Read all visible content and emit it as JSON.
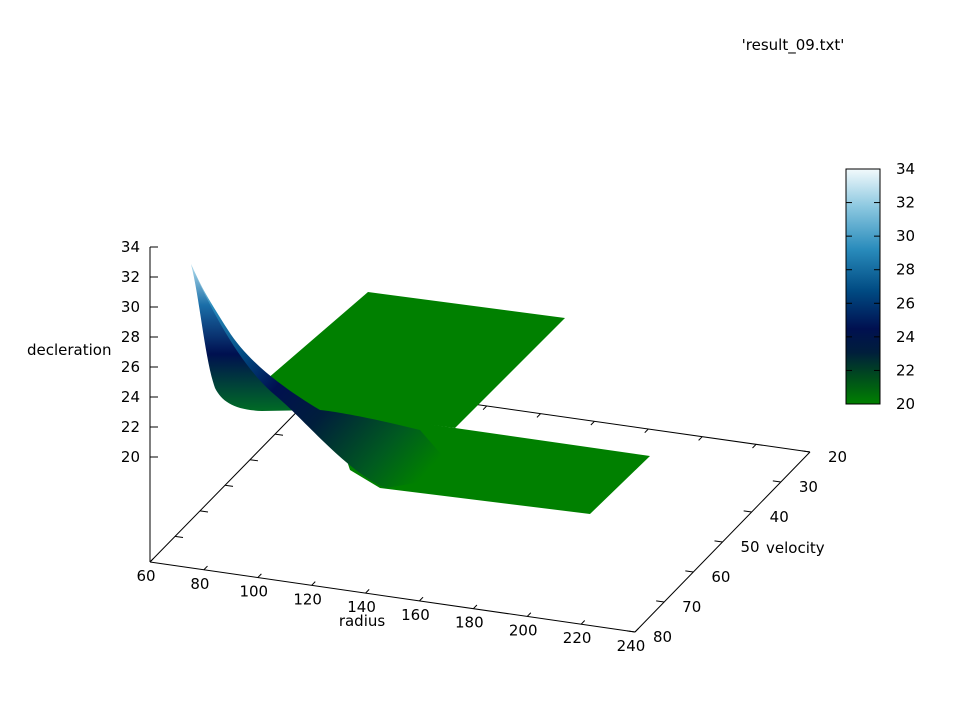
{
  "chart_data": {
    "type": "surface",
    "title": "'result_09.txt'",
    "xlabel": "radius",
    "ylabel": "velocity",
    "zlabel": "decleration",
    "xlim": [
      60,
      240
    ],
    "ylim": [
      20,
      80
    ],
    "zlim": [
      20,
      34
    ],
    "x_ticks": [
      "60",
      "80",
      "100",
      "120",
      "140",
      "160",
      "180",
      "200",
      "220",
      "240"
    ],
    "y_ticks": [
      "20",
      "30",
      "40",
      "50",
      "60",
      "70",
      "80"
    ],
    "z_ticks": [
      "20",
      "22",
      "24",
      "26",
      "28",
      "30",
      "32",
      "34"
    ],
    "colorbar": {
      "ticks": [
        "20",
        "22",
        "24",
        "26",
        "28",
        "30",
        "32",
        "34"
      ],
      "range": [
        20,
        34
      ],
      "stops": [
        "#008000",
        "#001e3c",
        "#001050",
        "#004a82",
        "#2a8cbc",
        "#8cc8e0",
        "#f2fafc"
      ]
    },
    "surfaces": [
      {
        "description": "decleration vs radius at low velocity",
        "points": [
          [
            62,
            33.0
          ],
          [
            68,
            28.0
          ],
          [
            74,
            25.6
          ],
          [
            80,
            24.2
          ],
          [
            88,
            23.0
          ],
          [
            96,
            22.1
          ],
          [
            104,
            21.4
          ],
          [
            112,
            20.9
          ],
          [
            120,
            20.5
          ],
          [
            128,
            20.25
          ],
          [
            136,
            20.1
          ],
          [
            144,
            20.0
          ],
          [
            240,
            20.0
          ]
        ]
      },
      {
        "description": "flat floor plane",
        "value": 20
      }
    ]
  }
}
